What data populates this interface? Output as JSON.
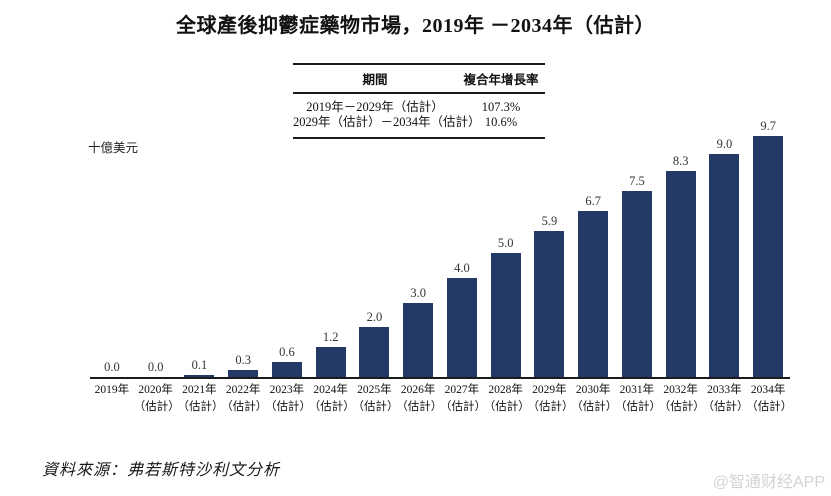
{
  "title": "全球產後抑鬱症藥物市場，2019年 －2034年（估計）",
  "cagr_table": {
    "headers": [
      "期間",
      "複合年增長率"
    ],
    "rows": [
      {
        "period": "2019年－2029年（估計）",
        "cagr": "107.3%"
      },
      {
        "period": "2029年（估計）－2034年（估計）",
        "cagr": "10.6%"
      }
    ]
  },
  "chart_data": {
    "type": "bar",
    "title": "全球產後抑鬱症藥物市場，2019年 －2034年（估計）",
    "ylabel": "十億美元",
    "xlabel": "",
    "categories": [
      "2019年",
      "2020年（估計）",
      "2021年（估計）",
      "2022年（估計）",
      "2023年（估計）",
      "2024年（估計）",
      "2025年（估計）",
      "2026年（估計）",
      "2027年（估計）",
      "2028年（估計）",
      "2029年（估計）",
      "2030年（估計）",
      "2031年（估計）",
      "2032年（估計）",
      "2033年（估計）",
      "2034年（估計）"
    ],
    "values": [
      0.0,
      0.0,
      0.1,
      0.3,
      0.6,
      1.2,
      2.0,
      3.0,
      4.0,
      5.0,
      5.9,
      6.7,
      7.5,
      8.3,
      9.0,
      9.7
    ],
    "ylim": [
      0,
      10
    ],
    "grid": false,
    "legend": "none",
    "value_labels": true
  },
  "source": "資料來源：弗若斯特沙利文分析",
  "watermark": "@智通财经APP",
  "colors": {
    "bar": "#243a66",
    "axis": "#1c1c1c",
    "watermark": "#d3d3d3"
  }
}
